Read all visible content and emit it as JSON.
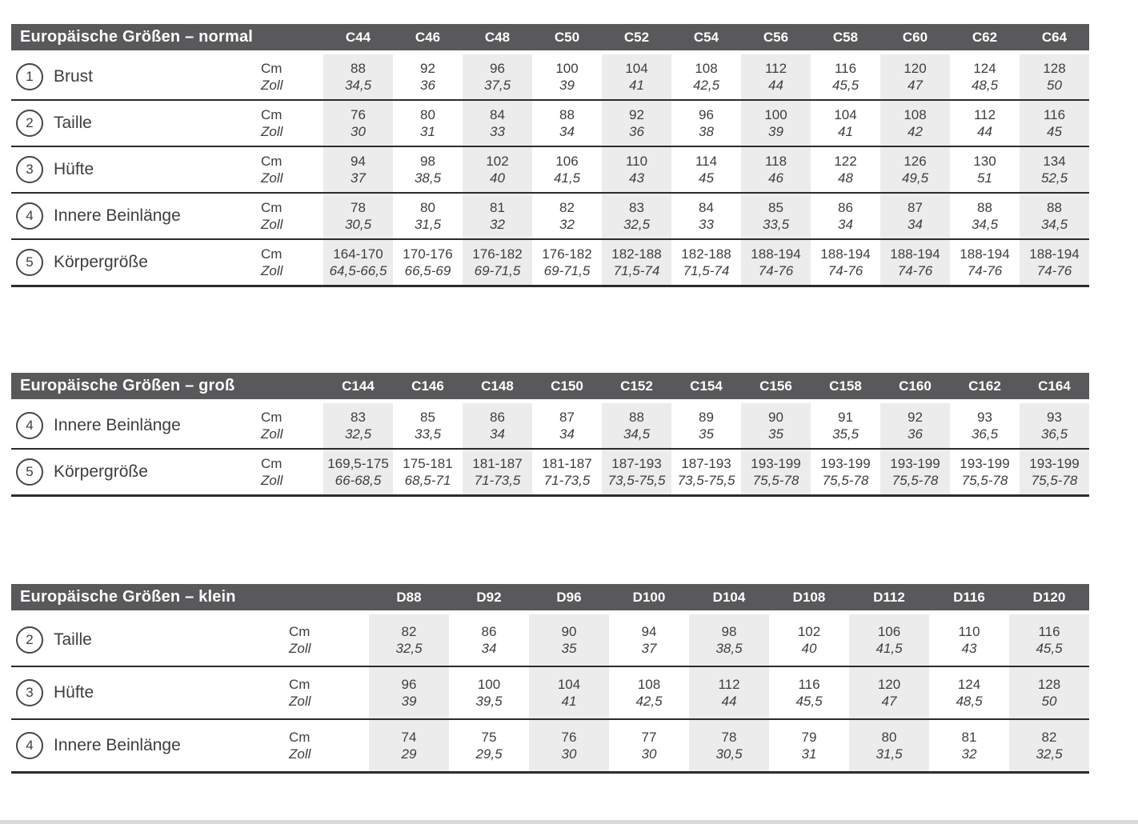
{
  "units": {
    "cm": "Cm",
    "zoll": "Zoll"
  },
  "colors": {
    "header_bar": "#59585a",
    "header_text": "#ffffff",
    "body_text": "#3e3e40",
    "column_stripe": "#ececec",
    "rule_line": "#2c2c2e",
    "bottom_edge": "#dadada"
  },
  "tables": [
    {
      "title": "Europäische Größen – normal",
      "columns": [
        "C44",
        "C46",
        "C48",
        "C50",
        "C52",
        "C54",
        "C56",
        "C58",
        "C60",
        "C62",
        "C64"
      ],
      "rows": [
        {
          "num": "1",
          "label": "Brust",
          "cm": [
            "88",
            "92",
            "96",
            "100",
            "104",
            "108",
            "112",
            "116",
            "120",
            "124",
            "128"
          ],
          "zoll": [
            "34,5",
            "36",
            "37,5",
            "39",
            "41",
            "42,5",
            "44",
            "45,5",
            "47",
            "48,5",
            "50"
          ]
        },
        {
          "num": "2",
          "label": "Taille",
          "cm": [
            "76",
            "80",
            "84",
            "88",
            "92",
            "96",
            "100",
            "104",
            "108",
            "112",
            "116"
          ],
          "zoll": [
            "30",
            "31",
            "33",
            "34",
            "36",
            "38",
            "39",
            "41",
            "42",
            "44",
            "45"
          ]
        },
        {
          "num": "3",
          "label": "Hüfte",
          "cm": [
            "94",
            "98",
            "102",
            "106",
            "110",
            "114",
            "118",
            "122",
            "126",
            "130",
            "134"
          ],
          "zoll": [
            "37",
            "38,5",
            "40",
            "41,5",
            "43",
            "45",
            "46",
            "48",
            "49,5",
            "51",
            "52,5"
          ]
        },
        {
          "num": "4",
          "label": "Innere Beinlänge",
          "cm": [
            "78",
            "80",
            "81",
            "82",
            "83",
            "84",
            "85",
            "86",
            "87",
            "88",
            "88"
          ],
          "zoll": [
            "30,5",
            "31,5",
            "32",
            "32",
            "32,5",
            "33",
            "33,5",
            "34",
            "34",
            "34,5",
            "34,5"
          ]
        },
        {
          "num": "5",
          "label": "Körpergröße",
          "cm": [
            "164-170",
            "170-176",
            "176-182",
            "176-182",
            "182-188",
            "182-188",
            "188-194",
            "188-194",
            "188-194",
            "188-194",
            "188-194"
          ],
          "zoll": [
            "64,5-66,5",
            "66,5-69",
            "69-71,5",
            "69-71,5",
            "71,5-74",
            "71,5-74",
            "74-76",
            "74-76",
            "74-76",
            "74-76",
            "74-76"
          ]
        }
      ]
    },
    {
      "title": "Europäische Größen – groß",
      "columns": [
        "C144",
        "C146",
        "C148",
        "C150",
        "C152",
        "C154",
        "C156",
        "C158",
        "C160",
        "C162",
        "C164"
      ],
      "rows": [
        {
          "num": "4",
          "label": "Innere Beinlänge",
          "cm": [
            "83",
            "85",
            "86",
            "87",
            "88",
            "89",
            "90",
            "91",
            "92",
            "93",
            "93"
          ],
          "zoll": [
            "32,5",
            "33,5",
            "34",
            "34",
            "34,5",
            "35",
            "35",
            "35,5",
            "36",
            "36,5",
            "36,5"
          ]
        },
        {
          "num": "5",
          "label": "Körpergröße",
          "cm": [
            "169,5-175",
            "175-181",
            "181-187",
            "181-187",
            "187-193",
            "187-193",
            "193-199",
            "193-199",
            "193-199",
            "193-199",
            "193-199"
          ],
          "zoll": [
            "66-68,5",
            "68,5-71",
            "71-73,5",
            "71-73,5",
            "73,5-75,5",
            "73,5-75,5",
            "75,5-78",
            "75,5-78",
            "75,5-78",
            "75,5-78",
            "75,5-78"
          ]
        }
      ]
    },
    {
      "title": "Europäische Größen – klein",
      "columns": [
        "D88",
        "D92",
        "D96",
        "D100",
        "D104",
        "D108",
        "D112",
        "D116",
        "D120"
      ],
      "rows": [
        {
          "num": "2",
          "label": "Taille",
          "cm": [
            "82",
            "86",
            "90",
            "94",
            "98",
            "102",
            "106",
            "110",
            "116"
          ],
          "zoll": [
            "32,5",
            "34",
            "35",
            "37",
            "38,5",
            "40",
            "41,5",
            "43",
            "45,5"
          ]
        },
        {
          "num": "3",
          "label": "Hüfte",
          "cm": [
            "96",
            "100",
            "104",
            "108",
            "112",
            "116",
            "120",
            "124",
            "128"
          ],
          "zoll": [
            "39",
            "39,5",
            "41",
            "42,5",
            "44",
            "45,5",
            "47",
            "48,5",
            "50"
          ]
        },
        {
          "num": "4",
          "label": "Innere Beinlänge",
          "cm": [
            "74",
            "75",
            "76",
            "77",
            "78",
            "79",
            "80",
            "81",
            "82"
          ],
          "zoll": [
            "29",
            "29,5",
            "30",
            "30",
            "30,5",
            "31",
            "31,5",
            "32",
            "32,5"
          ]
        }
      ]
    }
  ]
}
